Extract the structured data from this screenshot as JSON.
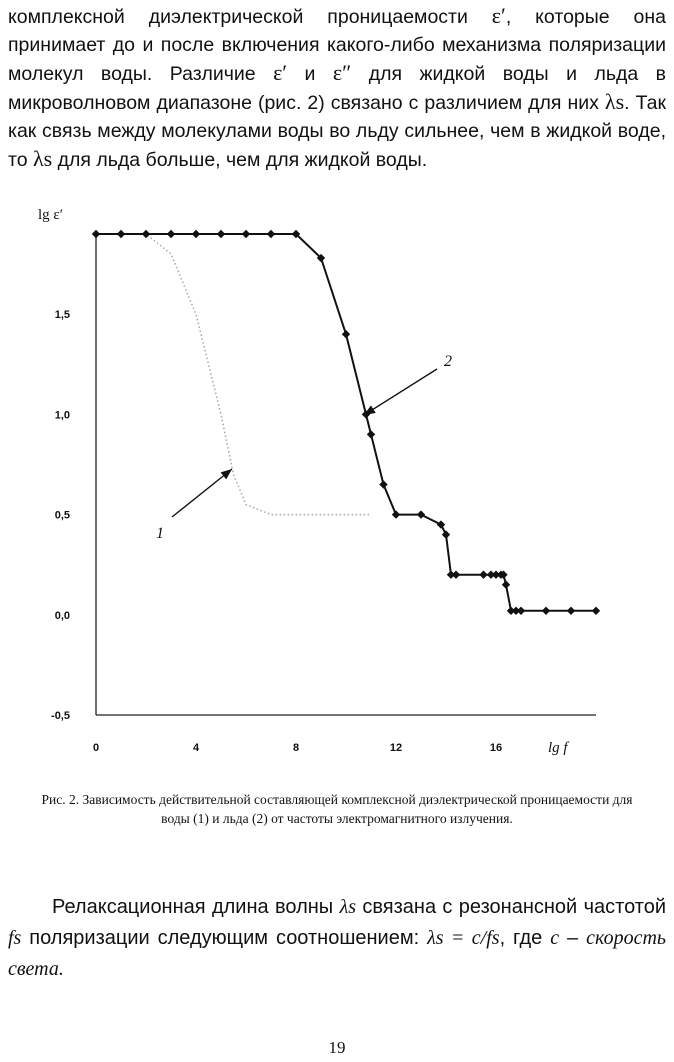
{
  "paragraph1": {
    "t1": "комплексной диэлектрической проницаемости ",
    "s1": "ε′",
    "t2": ", которые она принимает до и после включения какого-либо механизма поляризации молекул воды. Различие ",
    "s2": "ε′",
    "t3": " и ",
    "s3": "ε″",
    "t4": " для жидкой воды и льда в микроволновом диапазоне (рис. 2) связано с различием для них ",
    "s4": "λs",
    "t5": ". Так как связь между молекулами воды во льду сильнее, чем в жидкой воде, то ",
    "s5": "λs",
    "t6": " для льда больше, чем для жидкой воды."
  },
  "figure": {
    "caption": "Рис. 2. Зависимость действительной составляющей комплексной диэлектрической проницаемости для воды (1) и льда (2) от частоты электромагнитного излучения.",
    "callouts": [
      "1",
      "2"
    ]
  },
  "paragraph2": {
    "t1": "Релаксационная длина волны ",
    "s1": "λs",
    "t2": " связана с резонансной частотой ",
    "s2": "fs",
    "t3": " поляризации следующим соотношением: ",
    "s3": "λs = c/fs",
    "t4": ", где ",
    "s4": "c",
    "t5": " – ",
    "s5": "скорость света."
  },
  "page_number": "19",
  "chart_data": {
    "type": "line",
    "xlabel": "lg f",
    "ylabel": "lg ε′",
    "xlim": [
      0,
      20
    ],
    "ylim": [
      -0.5,
      1.9
    ],
    "x_ticks": [
      "0",
      "4",
      "8",
      "12",
      "16"
    ],
    "y_ticks": [
      "-0,5",
      "0,0",
      "0,5",
      "1,0",
      "1,5"
    ],
    "grid": false,
    "series": [
      {
        "name": "1",
        "style": "dotted, no markers",
        "x": [
          0,
          2,
          3,
          4,
          5,
          5.5,
          6,
          7,
          9,
          11
        ],
        "y": [
          1.9,
          1.9,
          1.8,
          1.5,
          1.0,
          0.7,
          0.55,
          0.5,
          0.5,
          0.5
        ]
      },
      {
        "name": "2",
        "style": "solid with markers",
        "x": [
          0,
          1,
          2,
          3,
          4,
          5,
          6,
          7,
          8,
          9,
          10,
          10.8,
          11,
          11.5,
          12,
          13,
          13.8,
          14,
          14.2,
          14.4,
          15.5,
          15.8,
          16,
          16.2,
          16.3,
          16.4,
          16.6,
          16.8,
          17,
          18,
          19,
          20
        ],
        "y": [
          1.9,
          1.9,
          1.9,
          1.9,
          1.9,
          1.9,
          1.9,
          1.9,
          1.9,
          1.78,
          1.4,
          1.0,
          0.9,
          0.65,
          0.5,
          0.5,
          0.45,
          0.4,
          0.2,
          0.2,
          0.2,
          0.2,
          0.2,
          0.2,
          0.2,
          0.15,
          0.02,
          0.02,
          0.02,
          0.02,
          0.02,
          0.02
        ]
      }
    ]
  }
}
